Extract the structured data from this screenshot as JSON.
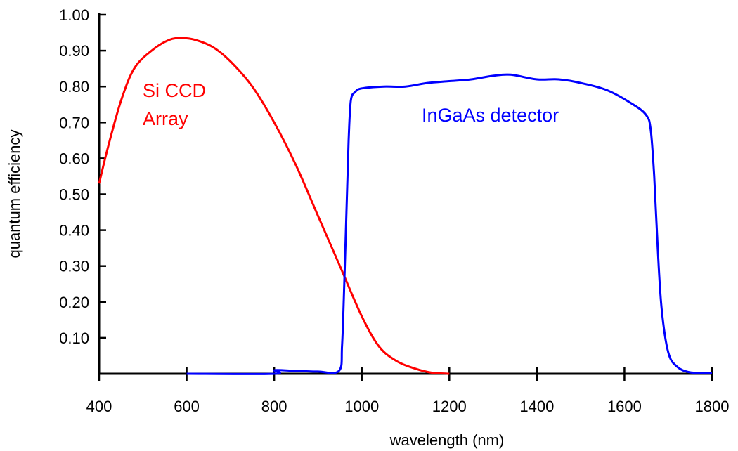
{
  "chart_data": {
    "type": "line",
    "title": "",
    "xlabel": "wavelength (nm)",
    "ylabel": "quantum efficiency",
    "xlim": [
      400,
      1800
    ],
    "ylim": [
      0,
      1.0
    ],
    "xticks": [
      400,
      600,
      800,
      1000,
      1200,
      1400,
      1600,
      1800
    ],
    "xtick_labels": [
      "400",
      "600",
      "800",
      "1000",
      "1200",
      "1400",
      "1600",
      "1800"
    ],
    "yticks": [
      0.1,
      0.2,
      0.3,
      0.4,
      0.5,
      0.6,
      0.7,
      0.8,
      0.9,
      1.0
    ],
    "ytick_labels": [
      "0.10",
      "0.20",
      "0.30",
      "0.40",
      "0.50",
      "0.60",
      "0.70",
      "0.80",
      "0.90",
      "1.00"
    ],
    "grid": false,
    "legend": "none",
    "series": [
      {
        "name": "Si CCD Array",
        "label_lines": [
          "Si CCD",
          "Array"
        ],
        "color": "#ff0000",
        "x": [
          400,
          420,
          450,
          480,
          520,
          560,
          590,
          620,
          660,
          700,
          750,
          800,
          850,
          900,
          950,
          1000,
          1040,
          1080,
          1120,
          1160,
          1200
        ],
        "y": [
          0.53,
          0.63,
          0.76,
          0.85,
          0.9,
          0.93,
          0.935,
          0.93,
          0.91,
          0.87,
          0.8,
          0.7,
          0.58,
          0.44,
          0.3,
          0.16,
          0.075,
          0.035,
          0.015,
          0.003,
          0.0
        ]
      },
      {
        "name": "InGaAs detector",
        "label_lines": [
          "InGaAs detector"
        ],
        "color": "#0000ff",
        "x": [
          600,
          800,
          801,
          850,
          900,
          948,
          955,
          960,
          965,
          970,
          975,
          985,
          1000,
          1050,
          1100,
          1150,
          1200,
          1250,
          1300,
          1340,
          1400,
          1450,
          1500,
          1560,
          1620,
          1650,
          1660,
          1668,
          1676,
          1685,
          1700,
          1720,
          1750,
          1800
        ],
        "y": [
          0.0,
          0.0,
          0.01,
          0.008,
          0.006,
          0.008,
          0.08,
          0.25,
          0.45,
          0.65,
          0.76,
          0.785,
          0.795,
          0.8,
          0.8,
          0.81,
          0.815,
          0.82,
          0.83,
          0.833,
          0.82,
          0.82,
          0.81,
          0.79,
          0.75,
          0.72,
          0.68,
          0.55,
          0.35,
          0.18,
          0.06,
          0.02,
          0.004,
          0.002
        ]
      }
    ]
  }
}
